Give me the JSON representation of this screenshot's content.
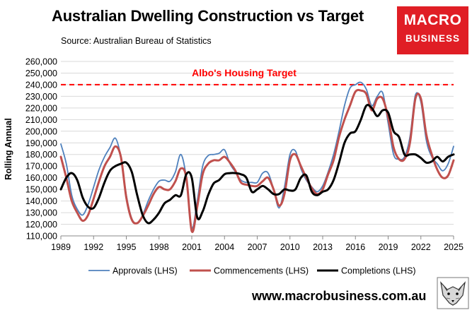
{
  "header": {
    "title": "Australian Dwelling Construction vs Target",
    "source": "Source: Australian Bureau of Statistics",
    "logo_line1": "MACRO",
    "logo_line2": "BUSINESS",
    "website": "www.macrobusiness.com.au"
  },
  "colors": {
    "approvals": "#4f81bd",
    "commencements": "#c0504d",
    "completions": "#000000",
    "target": "#ff0000",
    "brand": "#e01e25"
  },
  "chart_data": {
    "type": "line",
    "title": "Australian Dwelling Construction vs Target",
    "xlabel": "",
    "ylabel": "Rolling Annual",
    "ylim": [
      110000,
      260000
    ],
    "xlim": [
      1989,
      2025
    ],
    "yticks": [
      110000,
      120000,
      130000,
      140000,
      150000,
      160000,
      170000,
      180000,
      190000,
      200000,
      210000,
      220000,
      230000,
      240000,
      250000,
      260000
    ],
    "ytick_labels": [
      "110,000",
      "120,000",
      "130,000",
      "140,000",
      "150,000",
      "160,000",
      "170,000",
      "180,000",
      "190,000",
      "200,000",
      "210,000",
      "220,000",
      "230,000",
      "240,000",
      "250,000",
      "260,000"
    ],
    "xticks": [
      1989,
      1992,
      1995,
      1998,
      2001,
      2004,
      2007,
      2010,
      2013,
      2016,
      2019,
      2022,
      2025
    ],
    "xtick_labels": [
      "1989",
      "1992",
      "1995",
      "1998",
      "2001",
      "2004",
      "2007",
      "2010",
      "2013",
      "2016",
      "2019",
      "2022",
      "2025"
    ],
    "legend_position": "bottom",
    "target": {
      "label": "Albo's Housing Target",
      "value": 240000
    },
    "series": [
      {
        "name": "Approvals (LHS)",
        "x": [
          1989,
          1989.5,
          1990,
          1990.5,
          1991,
          1991.5,
          1992,
          1992.5,
          1993,
          1993.5,
          1994,
          1994.5,
          1995,
          1995.5,
          1996,
          1996.5,
          1997,
          1997.5,
          1998,
          1998.5,
          1999,
          1999.5,
          2000,
          2000.5,
          2001,
          2001.5,
          2002,
          2002.5,
          2003,
          2003.5,
          2004,
          2004.5,
          2005,
          2005.5,
          2006,
          2006.5,
          2007,
          2007.5,
          2008,
          2008.5,
          2009,
          2009.5,
          2010,
          2010.5,
          2011,
          2011.5,
          2012,
          2012.5,
          2013,
          2013.5,
          2014,
          2014.5,
          2015,
          2015.5,
          2016,
          2016.5,
          2017,
          2017.5,
          2018,
          2018.5,
          2019,
          2019.5,
          2020,
          2020.5,
          2021,
          2021.5,
          2022,
          2022.5,
          2023,
          2023.5,
          2024,
          2024.5,
          2025
        ],
        "values": [
          189000,
          172000,
          145000,
          133000,
          128000,
          137000,
          152000,
          167000,
          178000,
          186000,
          194000,
          178000,
          145000,
          125000,
          121000,
          128000,
          140000,
          150000,
          157000,
          158000,
          157000,
          165000,
          180000,
          160000,
          117000,
          140000,
          170000,
          179000,
          180000,
          181000,
          184000,
          172000,
          165000,
          158000,
          156000,
          156000,
          156000,
          164000,
          164000,
          150000,
          134000,
          152000,
          180000,
          183000,
          168000,
          158000,
          152000,
          148000,
          153000,
          165000,
          180000,
          200000,
          222000,
          237000,
          240000,
          242000,
          236000,
          222000,
          230000,
          233000,
          207000,
          180000,
          176000,
          178000,
          195000,
          231000,
          225000,
          192000,
          178000,
          172000,
          166000,
          172000,
          187000
        ]
      },
      {
        "name": "Commencements (LHS)",
        "x": [
          1989,
          1989.5,
          1990,
          1990.5,
          1991,
          1991.5,
          1992,
          1992.5,
          1993,
          1993.5,
          1994,
          1994.5,
          1995,
          1995.5,
          1996,
          1996.5,
          1997,
          1997.5,
          1998,
          1998.5,
          1999,
          1999.5,
          2000,
          2000.5,
          2001,
          2001.5,
          2002,
          2002.5,
          2003,
          2003.5,
          2004,
          2004.5,
          2005,
          2005.5,
          2006,
          2006.5,
          2007,
          2007.5,
          2008,
          2008.5,
          2009,
          2009.5,
          2010,
          2010.5,
          2011,
          2011.5,
          2012,
          2012.5,
          2013,
          2013.5,
          2014,
          2014.5,
          2015,
          2015.5,
          2016,
          2016.5,
          2017,
          2017.5,
          2018,
          2018.5,
          2019,
          2019.5,
          2020,
          2020.5,
          2021,
          2021.5,
          2022,
          2022.5,
          2023,
          2023.5,
          2024,
          2024.5,
          2025
        ],
        "values": [
          178000,
          160000,
          140000,
          130000,
          123000,
          128000,
          142000,
          157000,
          170000,
          178000,
          187000,
          178000,
          143000,
          124000,
          121000,
          127000,
          136000,
          146000,
          152000,
          150000,
          150000,
          157000,
          168000,
          160000,
          114000,
          135000,
          163000,
          172000,
          175000,
          175000,
          178000,
          173000,
          166000,
          156000,
          154000,
          153000,
          153000,
          157000,
          160000,
          150000,
          136000,
          146000,
          175000,
          180000,
          170000,
          160000,
          151000,
          146000,
          150000,
          163000,
          175000,
          195000,
          210000,
          222000,
          234000,
          235000,
          232000,
          218000,
          228000,
          228000,
          212000,
          186000,
          176000,
          176000,
          190000,
          228000,
          228000,
          197000,
          180000,
          167000,
          160000,
          162000,
          175000
        ]
      },
      {
        "name": "Completions (LHS)",
        "x": [
          1989,
          1989.5,
          1990,
          1990.5,
          1991,
          1991.5,
          1992,
          1992.5,
          1993,
          1993.5,
          1994,
          1994.5,
          1995,
          1995.5,
          1996,
          1996.5,
          1997,
          1997.5,
          1998,
          1998.5,
          1999,
          1999.5,
          2000,
          2000.5,
          2001,
          2001.5,
          2002,
          2002.5,
          2003,
          2003.5,
          2004,
          2004.5,
          2005,
          2005.5,
          2006,
          2006.5,
          2007,
          2007.5,
          2008,
          2008.5,
          2009,
          2009.5,
          2010,
          2010.5,
          2011,
          2011.5,
          2012,
          2012.5,
          2013,
          2013.5,
          2014,
          2014.5,
          2015,
          2015.5,
          2016,
          2016.5,
          2017,
          2017.5,
          2018,
          2018.5,
          2019,
          2019.5,
          2020,
          2020.5,
          2021,
          2021.5,
          2022,
          2022.5,
          2023,
          2023.5,
          2024,
          2024.5,
          2025
        ],
        "values": [
          150000,
          160000,
          164000,
          158000,
          143000,
          135000,
          134000,
          143000,
          156000,
          166000,
          170000,
          172000,
          173000,
          165000,
          145000,
          128000,
          121000,
          124000,
          130000,
          138000,
          141000,
          145000,
          145000,
          163000,
          160000,
          126000,
          131000,
          145000,
          155000,
          158000,
          163000,
          164000,
          164000,
          163000,
          160000,
          148000,
          150000,
          153000,
          150000,
          146000,
          146000,
          150000,
          149000,
          150000,
          160000,
          162000,
          148000,
          145000,
          148000,
          150000,
          158000,
          173000,
          190000,
          198000,
          200000,
          210000,
          222000,
          220000,
          213000,
          218000,
          216000,
          200000,
          195000,
          180000,
          180000,
          180000,
          177000,
          173000,
          174000,
          178000,
          174000,
          178000,
          180000
        ]
      }
    ]
  }
}
